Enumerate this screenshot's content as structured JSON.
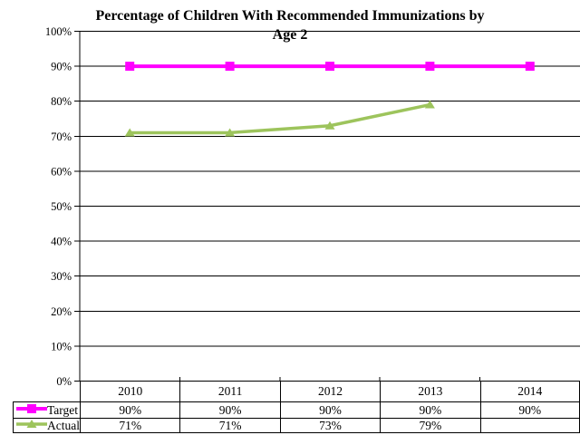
{
  "title": {
    "line1": "Percentage of Children With Recommended Immunizations by",
    "line2": "Age 2"
  },
  "colors": {
    "target": "#FF00FF",
    "actual": "#9DC45C",
    "grid": "#000000",
    "axis": "#000000",
    "background": "#FFFFFF"
  },
  "chart_data": {
    "type": "line",
    "title": "Percentage of Children With Recommended Immunizations by Age 2",
    "categories": [
      "2010",
      "2011",
      "2012",
      "2013",
      "2014"
    ],
    "series": [
      {
        "name": "Target",
        "marker": "square",
        "color": "#FF00FF",
        "line_width": 4,
        "values": [
          90,
          90,
          90,
          90,
          90
        ]
      },
      {
        "name": "Actual",
        "marker": "triangle",
        "color": "#9DC45C",
        "line_width": 3.5,
        "values": [
          71,
          71,
          73,
          79,
          null
        ]
      }
    ],
    "ylim": [
      0,
      100
    ],
    "ytick_step": 10,
    "ytick_labels": [
      "0%",
      "10%",
      "20%",
      "30%",
      "40%",
      "50%",
      "60%",
      "70%",
      "80%",
      "90%",
      "100%"
    ],
    "grid": true,
    "legend_position": "data-table",
    "xlabel": "",
    "ylabel": ""
  },
  "table": {
    "years": [
      "2010",
      "2011",
      "2012",
      "2013",
      "2014"
    ],
    "rows": [
      {
        "label": "Target",
        "values": [
          "90%",
          "90%",
          "90%",
          "90%",
          "90%"
        ]
      },
      {
        "label": "Actual",
        "values": [
          "71%",
          "71%",
          "73%",
          "79%",
          ""
        ]
      }
    ]
  }
}
